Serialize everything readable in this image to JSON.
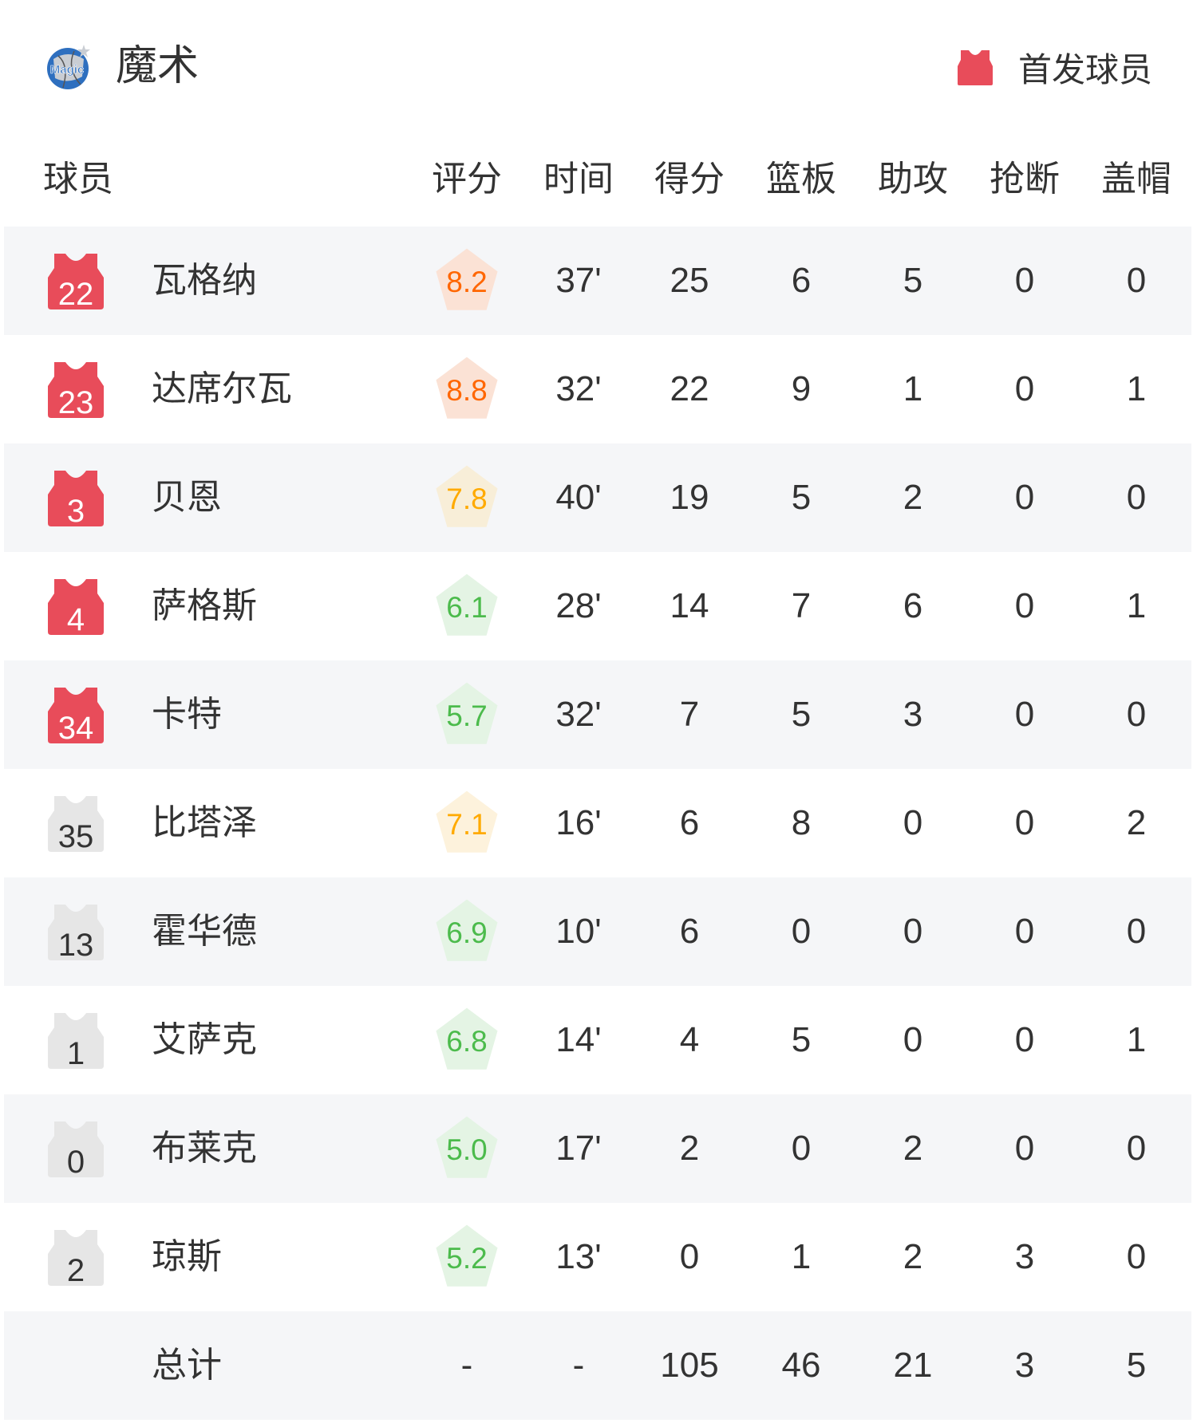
{
  "team": {
    "name": "魔术",
    "logo_text": "Magic"
  },
  "legend": {
    "label": "首发球员",
    "icon": "jersey-icon",
    "color": "#e84c5a"
  },
  "columns": [
    "球员",
    "评分",
    "时间",
    "得分",
    "篮板",
    "助攻",
    "抢断",
    "盖帽"
  ],
  "colors": {
    "starter": "#e84c5a",
    "bench": "#e6e6e6",
    "rating_high": "#ff6600",
    "rating_mid": "#ffaa00",
    "rating_low": "#4cbb4c"
  },
  "players": [
    {
      "number": "22",
      "name": "瓦格纳",
      "starter": true,
      "rating": "8.2",
      "tier": "high",
      "time": "37'",
      "pts": "25",
      "reb": "6",
      "ast": "5",
      "stl": "0",
      "blk": "0"
    },
    {
      "number": "23",
      "name": "达席尔瓦",
      "starter": true,
      "rating": "8.8",
      "tier": "high",
      "time": "32'",
      "pts": "22",
      "reb": "9",
      "ast": "1",
      "stl": "0",
      "blk": "1"
    },
    {
      "number": "3",
      "name": "贝恩",
      "starter": true,
      "rating": "7.8",
      "tier": "mid",
      "time": "40'",
      "pts": "19",
      "reb": "5",
      "ast": "2",
      "stl": "0",
      "blk": "0"
    },
    {
      "number": "4",
      "name": "萨格斯",
      "starter": true,
      "rating": "6.1",
      "tier": "low",
      "time": "28'",
      "pts": "14",
      "reb": "7",
      "ast": "6",
      "stl": "0",
      "blk": "1"
    },
    {
      "number": "34",
      "name": "卡特",
      "starter": true,
      "rating": "5.7",
      "tier": "low",
      "time": "32'",
      "pts": "7",
      "reb": "5",
      "ast": "3",
      "stl": "0",
      "blk": "0"
    },
    {
      "number": "35",
      "name": "比塔泽",
      "starter": false,
      "rating": "7.1",
      "tier": "mid",
      "time": "16'",
      "pts": "6",
      "reb": "8",
      "ast": "0",
      "stl": "0",
      "blk": "2"
    },
    {
      "number": "13",
      "name": "霍华德",
      "starter": false,
      "rating": "6.9",
      "tier": "low",
      "time": "10'",
      "pts": "6",
      "reb": "0",
      "ast": "0",
      "stl": "0",
      "blk": "0"
    },
    {
      "number": "1",
      "name": "艾萨克",
      "starter": false,
      "rating": "6.8",
      "tier": "low",
      "time": "14'",
      "pts": "4",
      "reb": "5",
      "ast": "0",
      "stl": "0",
      "blk": "1"
    },
    {
      "number": "0",
      "name": "布莱克",
      "starter": false,
      "rating": "5.0",
      "tier": "low",
      "time": "17'",
      "pts": "2",
      "reb": "0",
      "ast": "2",
      "stl": "0",
      "blk": "0"
    },
    {
      "number": "2",
      "name": "琼斯",
      "starter": false,
      "rating": "5.2",
      "tier": "low",
      "time": "13'",
      "pts": "0",
      "reb": "1",
      "ast": "2",
      "stl": "3",
      "blk": "0"
    }
  ],
  "total": {
    "label": "总计",
    "rating": "-",
    "time": "-",
    "pts": "105",
    "reb": "46",
    "ast": "21",
    "stl": "3",
    "blk": "5"
  }
}
